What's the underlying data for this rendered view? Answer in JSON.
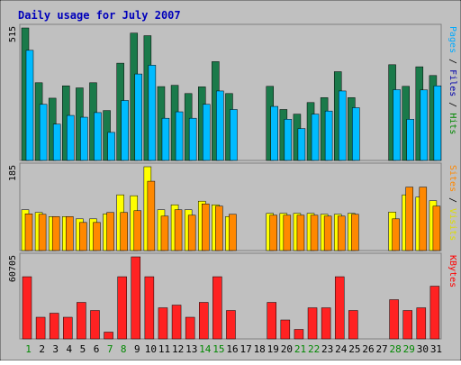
{
  "chart_data": {
    "type": "bar",
    "title": "Daily usage for July 2007",
    "days": [
      "1",
      "2",
      "3",
      "4",
      "5",
      "6",
      "7",
      "8",
      "9",
      "10",
      "11",
      "12",
      "13",
      "14",
      "15",
      "16",
      "17",
      "18",
      "19",
      "20",
      "21",
      "22",
      "23",
      "24",
      "25",
      "26",
      "27",
      "28",
      "29",
      "30",
      "31"
    ],
    "weekend_days": [
      "1",
      "7",
      "8",
      "14",
      "15",
      "21",
      "22",
      "28",
      "29"
    ],
    "panels": [
      {
        "id": "hits",
        "max_label": "515",
        "ymax": 515,
        "legend": [
          {
            "text": "Pages",
            "color": "#00aaff"
          },
          {
            "text": " / ",
            "color": "#000000"
          },
          {
            "text": "Files",
            "color": "#0000aa"
          },
          {
            "text": " / ",
            "color": "#000000"
          },
          {
            "text": "Hits",
            "color": "#008800"
          }
        ],
        "series": [
          {
            "name": "Hits",
            "color": "#1a7a4a",
            "values": [
              515,
              302,
              242,
              290,
              282,
              302,
              194,
              378,
              495,
              485,
              287,
              292,
              260,
              286,
              384,
              260,
              0,
              0,
              0,
              0,
              0,
              0,
              0,
              0,
              0,
              0,
              0,
              0,
              0,
              0,
              0
            ]
          },
          {
            "name": "Files",
            "color": "#0000bb",
            "values": [
              0,
              0,
              0,
              0,
              0,
              0,
              0,
              0,
              0,
              0,
              0,
              0,
              0,
              0,
              0,
              0,
              0,
              0,
              0,
              0,
              0,
              0,
              0,
              0,
              0,
              0,
              0,
              0,
              0,
              0,
              0
            ]
          },
          {
            "name": "Pages",
            "color": "#00bbff",
            "values": [
              428,
              218,
              141,
              175,
              168,
              186,
              109,
              233,
              336,
              370,
              164,
              189,
              164,
              218,
              270,
              198,
              0,
              0,
              0,
              0,
              0,
              0,
              0,
              0,
              0,
              0,
              0,
              0,
              0,
              0,
              0
            ]
          }
        ]
      },
      {
        "id": "visits",
        "max_label": "185",
        "ymax": 185,
        "legend": [
          {
            "text": "Sites",
            "color": "#ff8800"
          },
          {
            "text": " / ",
            "color": "#000000"
          },
          {
            "text": "Visits",
            "color": "#dddd00"
          }
        ],
        "series": [
          {
            "name": "Visits",
            "color": "#ffff00",
            "values": [
              90,
              84,
              75,
              75,
              70,
              70,
              81,
              123,
              121,
              185,
              90,
              101,
              90,
              109,
              101,
              75,
              0,
              0,
              0,
              0,
              0,
              0,
              0,
              0,
              0,
              0,
              0,
              0,
              0,
              0,
              0
            ]
          },
          {
            "name": "Sites",
            "color": "#ff8800",
            "values": [
              81,
              80,
              75,
              75,
              62,
              62,
              84,
              84,
              88,
              153,
              76,
              90,
              78,
              103,
              98,
              80,
              0,
              0,
              0,
              0,
              0,
              0,
              0,
              0,
              0,
              0,
              0,
              0,
              0,
              0,
              0
            ]
          }
        ]
      },
      {
        "id": "kbytes",
        "max_label": "60705",
        "ymax": 60705,
        "legend": [
          {
            "text": "KBytes",
            "color": "#ff0000"
          }
        ],
        "series": [
          {
            "name": "KBytes",
            "color": "#ff2222",
            "values": [
              46000,
              16000,
              19000,
              16000,
              27000,
              21000,
              5000,
              46000,
              60705,
              46000,
              23000,
              25000,
              16000,
              27000,
              46000,
              21000,
              0,
              0,
              0,
              0,
              0,
              0,
              0,
              0,
              0,
              0,
              0,
              0,
              0,
              0,
              0
            ]
          }
        ]
      }
    ],
    "late_month": {
      "hits": {
        "hits": [
          0,
          0,
          0,
          288,
          198,
          180,
          225,
          244,
          345,
          244,
          0,
          0,
          372,
          288,
          364,
          330,
          257
        ],
        "files": [
          0,
          0,
          0,
          0,
          0,
          0,
          0,
          0,
          0,
          0,
          0,
          0,
          0,
          0,
          0,
          0,
          0
        ],
        "pages": [
          0,
          0,
          0,
          210,
          160,
          124,
          180,
          192,
          270,
          205,
          0,
          0,
          275,
          160,
          274,
          290,
          225
        ]
      },
      "visits": {
        "visits": [
          0,
          0,
          0,
          82,
          82,
          82,
          82,
          80,
          80,
          82,
          0,
          0,
          85,
          123,
          118,
          110,
          80
        ],
        "sites": [
          0,
          0,
          0,
          78,
          78,
          78,
          78,
          76,
          76,
          80,
          0,
          0,
          70,
          140,
          140,
          98,
          82
        ]
      },
      "kbytes": [
        0,
        0,
        0,
        27000,
        14000,
        7000,
        23000,
        23000,
        46000,
        21000,
        0,
        0,
        29000,
        21000,
        23000,
        39000,
        46000
      ]
    }
  }
}
